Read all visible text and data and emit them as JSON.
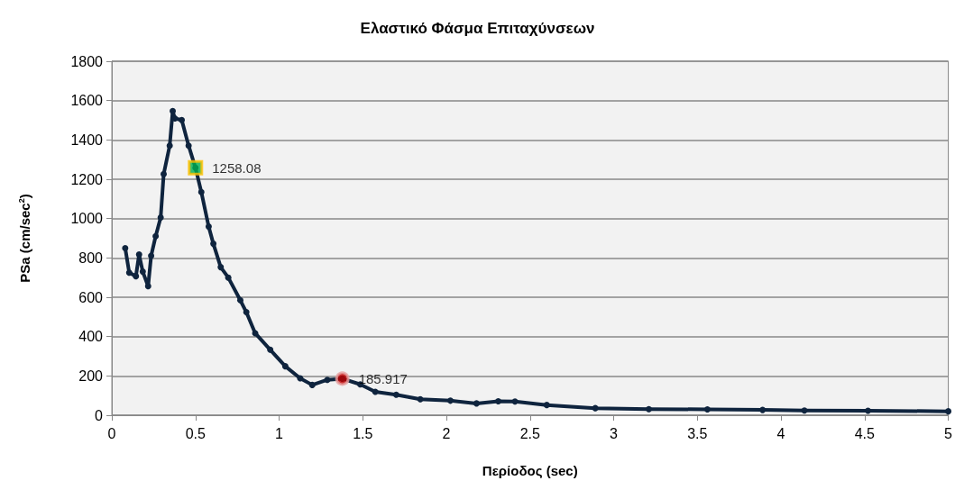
{
  "chart_data": {
    "type": "line",
    "title": "Ελαστικό Φάσμα Επιταχύνσεων",
    "xlabel": "Περίοδος (sec)",
    "ylabel": "PSa (cm/sec$^{2}$)",
    "xlim": [
      0,
      5
    ],
    "xticks": [
      0,
      0.5,
      1,
      1.5,
      2,
      2.5,
      3,
      3.5,
      4,
      4.5,
      5
    ],
    "ylim": [
      0,
      1800
    ],
    "yticks": [
      0,
      200,
      400,
      600,
      800,
      1000,
      1200,
      1400,
      1600,
      1800
    ],
    "grid": "y",
    "marker": "circle",
    "line_style": "solid",
    "series": [
      {
        "color": "#0f243e",
        "x": [
          0.08,
          0.104,
          0.144,
          0.163,
          0.185,
          0.217,
          0.235,
          0.262,
          0.292,
          0.31,
          0.346,
          0.364,
          0.377,
          0.418,
          0.459,
          0.5,
          0.535,
          0.579,
          0.607,
          0.651,
          0.696,
          0.768,
          0.804,
          0.857,
          0.947,
          1.037,
          1.126,
          1.198,
          1.288,
          1.378,
          1.485,
          1.575,
          1.7,
          1.844,
          2.024,
          2.18,
          2.31,
          2.41,
          2.6,
          2.89,
          3.21,
          3.56,
          3.89,
          4.14,
          4.52,
          5.0
        ],
        "values": [
          850,
          725,
          707,
          817,
          730,
          656,
          811,
          910,
          1005,
          1226,
          1371,
          1547,
          1509,
          1501,
          1371,
          1258,
          1135,
          959,
          872,
          753,
          700,
          585,
          524,
          417,
          333,
          249,
          188,
          154,
          180,
          186,
          157,
          119,
          104,
          81,
          74,
          60,
          71,
          70,
          52,
          36,
          31,
          30,
          27,
          24,
          23,
          20
        ]
      },
      {
        "type": "scatter",
        "marker": "square",
        "color": "#00b050",
        "x": [
          0.5
        ],
        "values": [
          1258.08
        ],
        "value_labels": [
          "1258.08"
        ]
      },
      {
        "type": "scatter",
        "marker": "circle",
        "color": "#c00000",
        "x": [
          1.378
        ],
        "values": [
          185.917
        ],
        "value_labels": [
          "185.917"
        ]
      }
    ]
  }
}
